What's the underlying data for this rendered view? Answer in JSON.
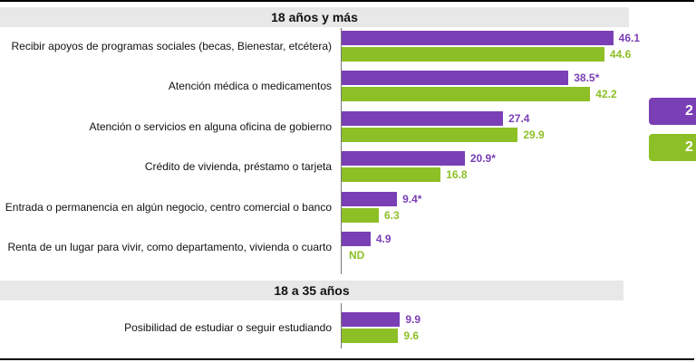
{
  "colors": {
    "series_a": "#7a3fb5",
    "series_b": "#8dbf26"
  },
  "legend": {
    "a_text": "2",
    "b_text": "2"
  },
  "chart_data": {
    "type": "bar",
    "orientation": "horizontal",
    "sections": [
      {
        "title": "18 años y más",
        "categories": [
          "Recibir apoyos de programas sociales (becas, Bienestar, etcétera)",
          "Atención médica o medicamentos",
          "Atención o servicios en alguna oficina de gobierno",
          "Crédito de vivienda, préstamo o tarjeta",
          "Entrada o permanencia en algún negocio, centro comercial o banco",
          "Renta de un lugar para vivir, como departamento, vivienda o cuarto"
        ],
        "series": [
          {
            "values": [
              46.1,
              38.5,
              27.4,
              20.9,
              9.4,
              4.9
            ],
            "labels": [
              "46.1",
              "38.5*",
              "27.4",
              "20.9*",
              "9.4*",
              "4.9"
            ]
          },
          {
            "values": [
              44.6,
              42.2,
              29.9,
              16.8,
              6.3,
              null
            ],
            "labels": [
              "44.6",
              "42.2",
              "29.9",
              "16.8",
              "6.3",
              "ND"
            ]
          }
        ]
      },
      {
        "title": "18 a 35 años",
        "categories": [
          "Posibilidad de estudiar o seguir estudiando"
        ],
        "series": [
          {
            "values": [
              9.9
            ],
            "labels": [
              "9.9"
            ]
          },
          {
            "values": [
              9.6
            ],
            "labels": [
              "9.6"
            ]
          }
        ]
      }
    ]
  }
}
